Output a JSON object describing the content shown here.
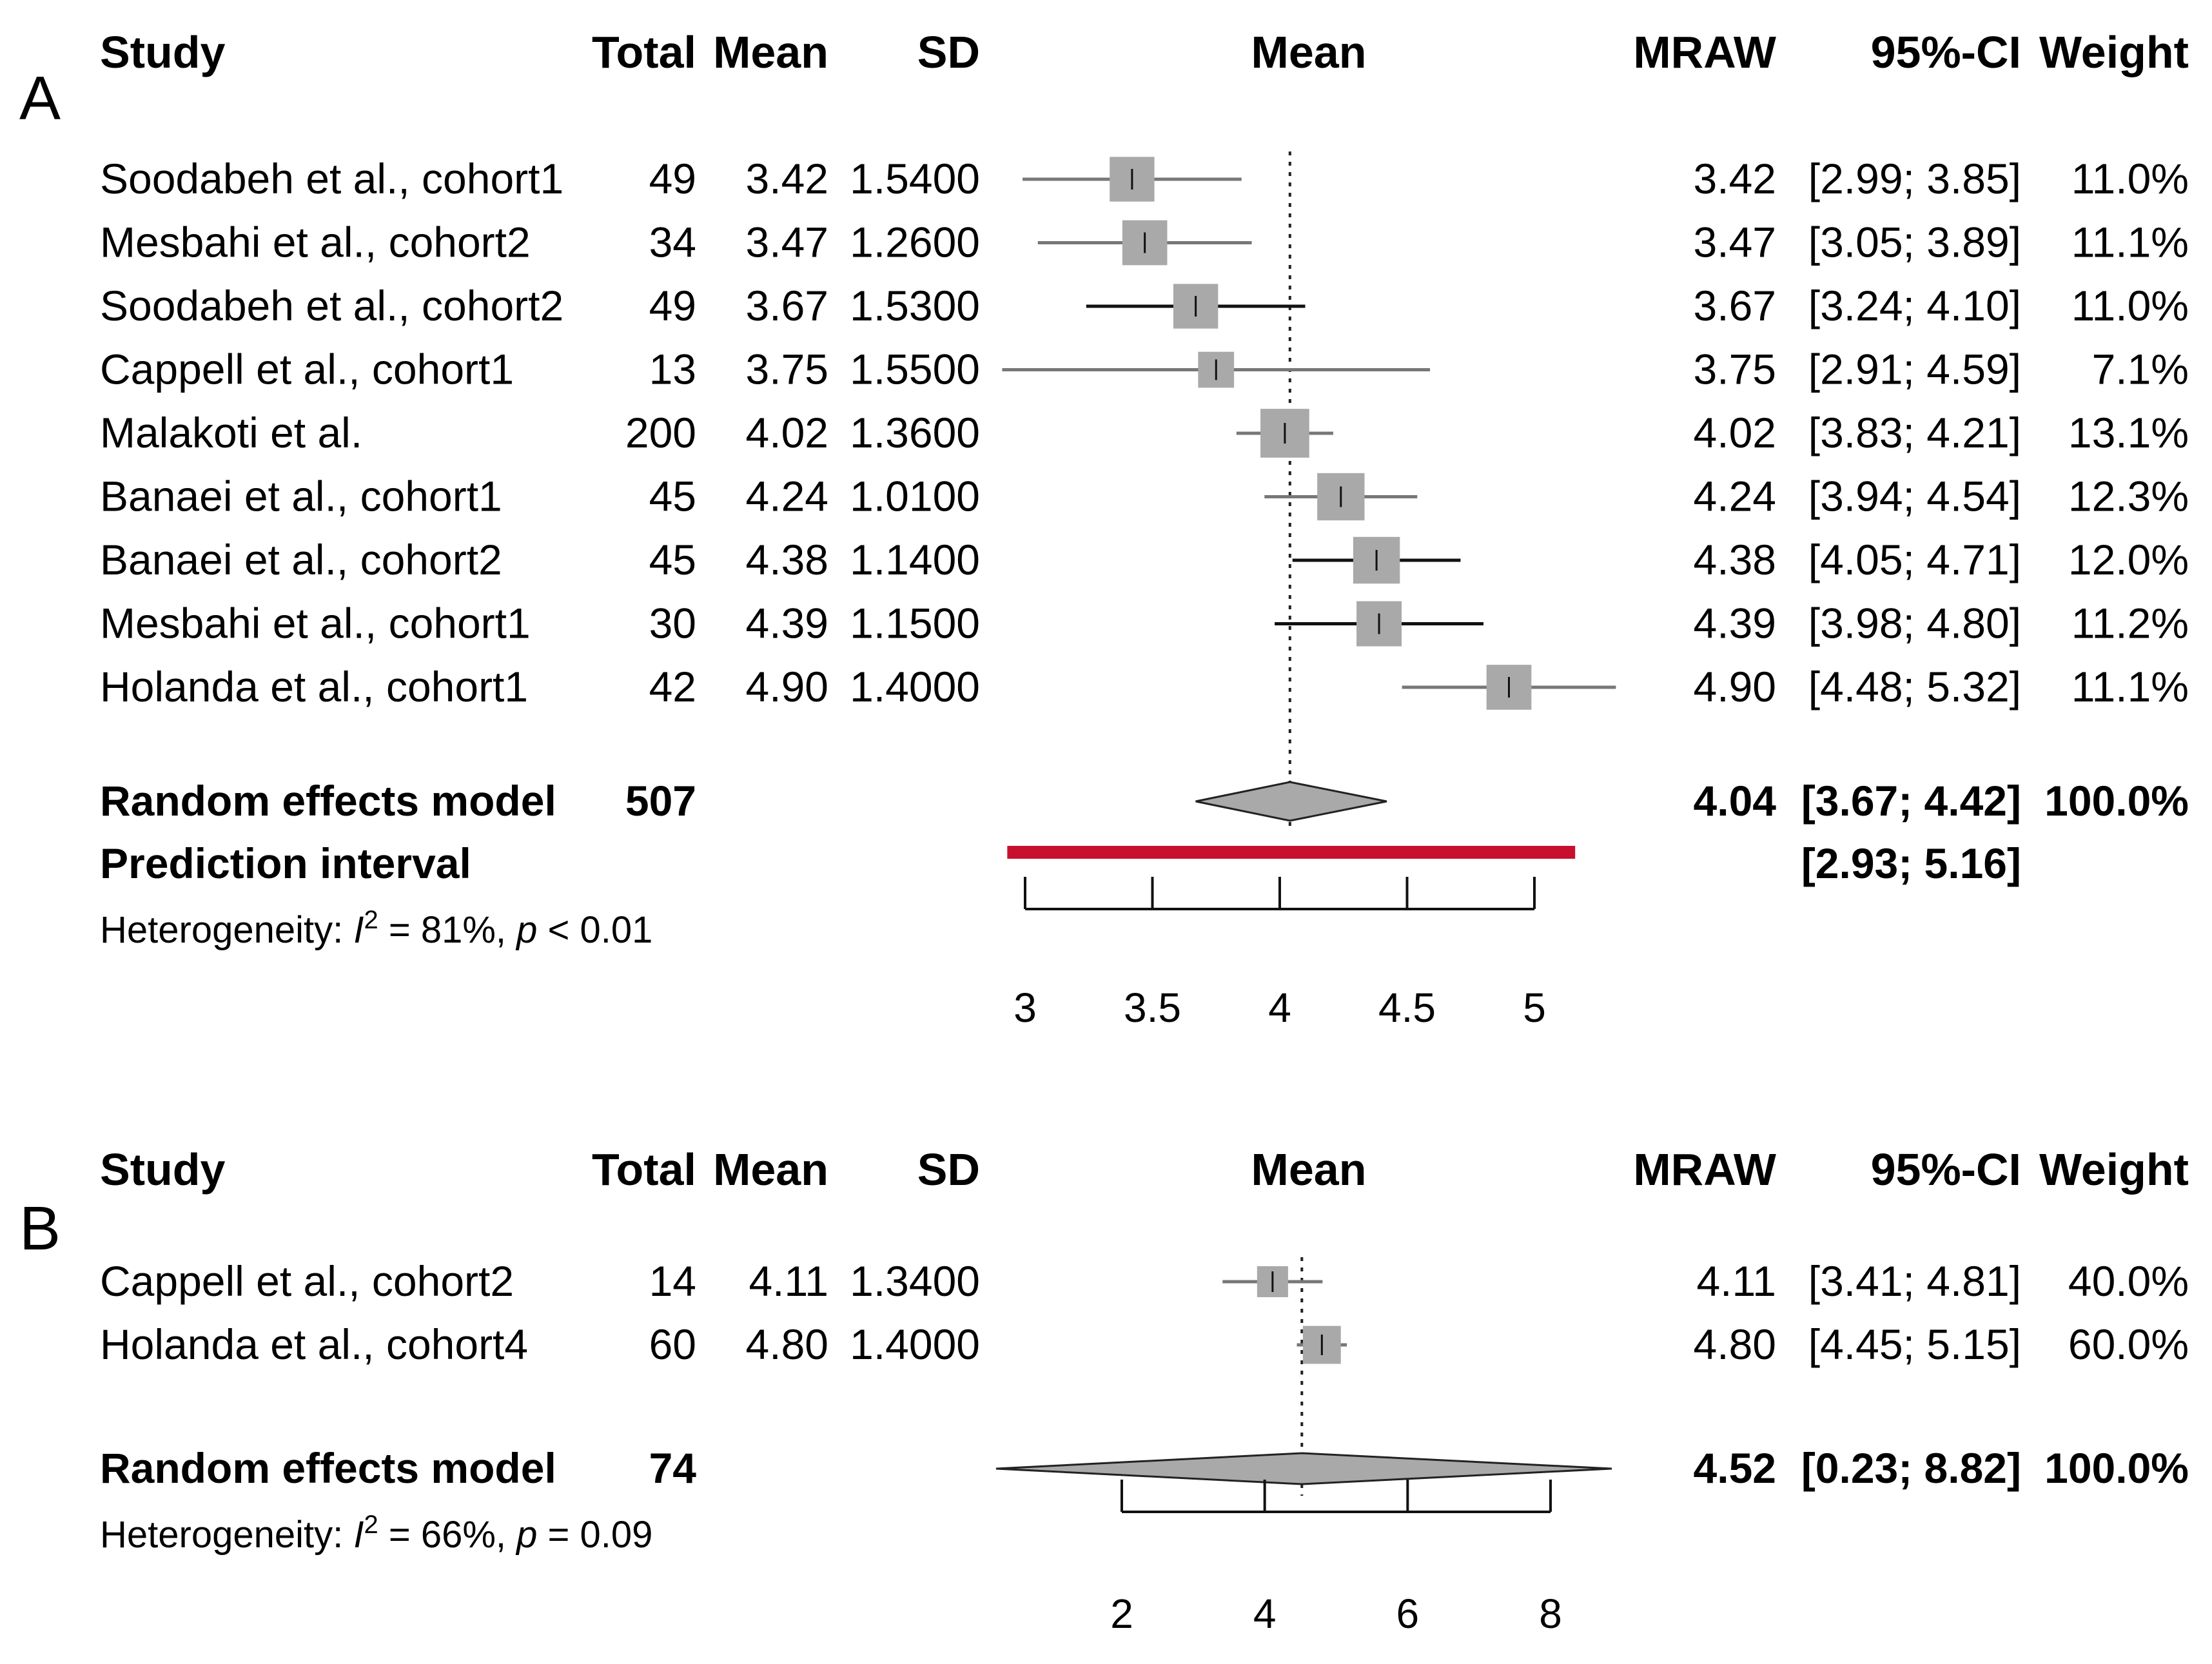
{
  "chart_data": [
    {
      "type": "forest",
      "panel": "A",
      "headers": {
        "study": "Study",
        "total": "Total",
        "mean": "Mean",
        "sd": "SD",
        "plot": "Mean",
        "mraw": "MRAW",
        "ci": "95%-CI",
        "weight": "Weight"
      },
      "studies": [
        {
          "name": "Soodabeh et al., cohort1",
          "total": "49",
          "mean": "3.42",
          "sd": "1.5400",
          "mraw": "3.42",
          "ci": "[2.99; 3.85]",
          "weight": "11.0%",
          "est": 3.42,
          "lo": 2.99,
          "hi": 3.85,
          "w": 11.0
        },
        {
          "name": "Mesbahi et al., cohort2",
          "total": "34",
          "mean": "3.47",
          "sd": "1.2600",
          "mraw": "3.47",
          "ci": "[3.05; 3.89]",
          "weight": "11.1%",
          "est": 3.47,
          "lo": 3.05,
          "hi": 3.89,
          "w": 11.1
        },
        {
          "name": "Soodabeh et al., cohort2",
          "total": "49",
          "mean": "3.67",
          "sd": "1.5300",
          "mraw": "3.67",
          "ci": "[3.24; 4.10]",
          "weight": "11.0%",
          "est": 3.67,
          "lo": 3.24,
          "hi": 4.1,
          "w": 11.0
        },
        {
          "name": "Cappell et al., cohort1",
          "total": "13",
          "mean": "3.75",
          "sd": "1.5500",
          "mraw": "3.75",
          "ci": "[2.91; 4.59]",
          "weight": "7.1%",
          "est": 3.75,
          "lo": 2.91,
          "hi": 4.59,
          "w": 7.1
        },
        {
          "name": "Malakoti et al.",
          "total": "200",
          "mean": "4.02",
          "sd": "1.3600",
          "mraw": "4.02",
          "ci": "[3.83; 4.21]",
          "weight": "13.1%",
          "est": 4.02,
          "lo": 3.83,
          "hi": 4.21,
          "w": 13.1
        },
        {
          "name": "Banaei et al., cohort1",
          "total": "45",
          "mean": "4.24",
          "sd": "1.0100",
          "mraw": "4.24",
          "ci": "[3.94; 4.54]",
          "weight": "12.3%",
          "est": 4.24,
          "lo": 3.94,
          "hi": 4.54,
          "w": 12.3
        },
        {
          "name": "Banaei et al., cohort2",
          "total": "45",
          "mean": "4.38",
          "sd": "1.1400",
          "mraw": "4.38",
          "ci": "[4.05; 4.71]",
          "weight": "12.0%",
          "est": 4.38,
          "lo": 4.05,
          "hi": 4.71,
          "w": 12.0
        },
        {
          "name": "Mesbahi et al., cohort1",
          "total": "30",
          "mean": "4.39",
          "sd": "1.1500",
          "mraw": "4.39",
          "ci": "[3.98; 4.80]",
          "weight": "11.2%",
          "est": 4.39,
          "lo": 3.98,
          "hi": 4.8,
          "w": 11.2
        },
        {
          "name": "Holanda et al., cohort1",
          "total": "42",
          "mean": "4.90",
          "sd": "1.4000",
          "mraw": "4.90",
          "ci": "[4.48; 5.32]",
          "weight": "11.1%",
          "est": 4.9,
          "lo": 4.48,
          "hi": 5.32,
          "w": 11.1
        }
      ],
      "summary": {
        "label": "Random effects model",
        "total": "507",
        "mraw": "4.04",
        "ci": "[3.67; 4.42]",
        "weight": "100.0%",
        "est": 4.04,
        "lo": 3.67,
        "hi": 4.42
      },
      "prediction": {
        "label": "Prediction interval",
        "ci": "[2.93; 5.16]",
        "lo": 2.93,
        "hi": 5.16
      },
      "heterogeneity": {
        "prefix": "Heterogeneity: ",
        "i2": "I",
        "sup": "2",
        "rest": " = 81%, ",
        "p": "p",
        "pval": " < 0.01"
      },
      "axis": {
        "ticks": [
          3,
          3.5,
          4,
          4.5,
          5
        ],
        "tick_labels": [
          "3",
          "3.5",
          "4",
          "4.5",
          "5"
        ],
        "ref_line": 4.04
      }
    },
    {
      "type": "forest",
      "panel": "B",
      "headers": {
        "study": "Study",
        "total": "Total",
        "mean": "Mean",
        "sd": "SD",
        "plot": "Mean",
        "mraw": "MRAW",
        "ci": "95%-CI",
        "weight": "Weight"
      },
      "studies": [
        {
          "name": "Cappell et al., cohort2",
          "total": "14",
          "mean": "4.11",
          "sd": "1.3400",
          "mraw": "4.11",
          "ci": "[3.41; 4.81]",
          "weight": "40.0%",
          "est": 4.11,
          "lo": 3.41,
          "hi": 4.81,
          "w": 40.0
        },
        {
          "name": "Holanda et al., cohort4",
          "total": "60",
          "mean": "4.80",
          "sd": "1.4000",
          "mraw": "4.80",
          "ci": "[4.45; 5.15]",
          "weight": "60.0%",
          "est": 4.8,
          "lo": 4.45,
          "hi": 5.15,
          "w": 60.0
        }
      ],
      "summary": {
        "label": "Random effects model",
        "total": "74",
        "mraw": "4.52",
        "ci": "[0.23; 8.82]",
        "weight": "100.0%",
        "est": 4.52,
        "lo": 0.23,
        "hi": 8.82
      },
      "heterogeneity": {
        "prefix": "Heterogeneity: ",
        "i2": "I",
        "sup": "2",
        "rest": " = 66%, ",
        "p": "p",
        "pval": " = 0.09"
      },
      "axis": {
        "ticks": [
          2,
          4,
          6,
          8
        ],
        "tick_labels": [
          "2",
          "4",
          "6",
          "8"
        ],
        "ref_line": 4.52
      }
    }
  ]
}
